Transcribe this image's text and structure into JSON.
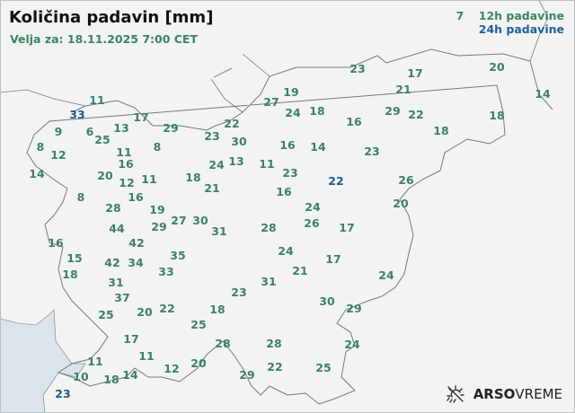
{
  "header": {
    "title": "Količina padavin [mm]",
    "valid_for": "Velja za: 18.11.2025 7:00 CET"
  },
  "legend": {
    "label_12h": "12h padavine",
    "label_24h": "24h padavine",
    "color_12h": "#3c8260",
    "color_24h": "#1f5a8c"
  },
  "branding": {
    "brand_bold": "ARSO",
    "brand_light": "VREME",
    "icon": "sun-rain-icon"
  },
  "map": {
    "colors": {
      "land": "#f3f3f3",
      "sea": "#dde3ea",
      "border": "#6e7a88"
    },
    "stations": [
      {
        "v": "7",
        "t": "12h"
      },
      {
        "v": "11",
        "t": "12h"
      },
      {
        "v": "33",
        "t": "24h"
      },
      {
        "v": "17",
        "t": "12h"
      },
      {
        "v": "29",
        "t": "12h"
      },
      {
        "v": "6",
        "t": "12h"
      },
      {
        "v": "9",
        "t": "12h"
      },
      {
        "v": "13",
        "t": "12h"
      },
      {
        "v": "8",
        "t": "12h"
      },
      {
        "v": "25",
        "t": "12h"
      },
      {
        "v": "11",
        "t": "12h"
      },
      {
        "v": "8",
        "t": "12h"
      },
      {
        "v": "12",
        "t": "12h"
      },
      {
        "v": "16",
        "t": "12h"
      },
      {
        "v": "14",
        "t": "12h"
      },
      {
        "v": "20",
        "t": "12h"
      },
      {
        "v": "12",
        "t": "12h"
      },
      {
        "v": "11",
        "t": "12h"
      },
      {
        "v": "16",
        "t": "12h"
      },
      {
        "v": "19",
        "t": "12h"
      },
      {
        "v": "8",
        "t": "12h"
      },
      {
        "v": "28",
        "t": "12h"
      },
      {
        "v": "18",
        "t": "12h"
      },
      {
        "v": "21",
        "t": "12h"
      },
      {
        "v": "24",
        "t": "12h"
      },
      {
        "v": "13",
        "t": "12h"
      },
      {
        "v": "23",
        "t": "12h"
      },
      {
        "v": "22",
        "t": "12h"
      },
      {
        "v": "30",
        "t": "12h"
      },
      {
        "v": "11",
        "t": "12h"
      },
      {
        "v": "29",
        "t": "12h"
      },
      {
        "v": "27",
        "t": "12h"
      },
      {
        "v": "30",
        "t": "12h"
      },
      {
        "v": "31",
        "t": "12h"
      },
      {
        "v": "28",
        "t": "12h"
      },
      {
        "v": "44",
        "t": "12h"
      },
      {
        "v": "16",
        "t": "12h"
      },
      {
        "v": "42",
        "t": "12h"
      },
      {
        "v": "15",
        "t": "12h"
      },
      {
        "v": "42",
        "t": "12h"
      },
      {
        "v": "34",
        "t": "12h"
      },
      {
        "v": "35",
        "t": "12h"
      },
      {
        "v": "33",
        "t": "12h"
      },
      {
        "v": "18",
        "t": "12h"
      },
      {
        "v": "31",
        "t": "12h"
      },
      {
        "v": "24",
        "t": "12h"
      },
      {
        "v": "37",
        "t": "12h"
      },
      {
        "v": "20",
        "t": "12h"
      },
      {
        "v": "22",
        "t": "12h"
      },
      {
        "v": "25",
        "t": "12h"
      },
      {
        "v": "23",
        "t": "12h"
      },
      {
        "v": "31",
        "t": "12h"
      },
      {
        "v": "18",
        "t": "12h"
      },
      {
        "v": "25",
        "t": "12h"
      },
      {
        "v": "17",
        "t": "12h"
      },
      {
        "v": "11",
        "t": "12h"
      },
      {
        "v": "28",
        "t": "12h"
      },
      {
        "v": "28",
        "t": "12h"
      },
      {
        "v": "11",
        "t": "12h"
      },
      {
        "v": "10",
        "t": "12h"
      },
      {
        "v": "18",
        "t": "12h"
      },
      {
        "v": "14",
        "t": "12h"
      },
      {
        "v": "12",
        "t": "12h"
      },
      {
        "v": "20",
        "t": "12h"
      },
      {
        "v": "22",
        "t": "12h"
      },
      {
        "v": "29",
        "t": "12h"
      },
      {
        "v": "23",
        "t": "24h"
      },
      {
        "v": "23",
        "t": "12h"
      },
      {
        "v": "17",
        "t": "12h"
      },
      {
        "v": "20",
        "t": "12h"
      },
      {
        "v": "21",
        "t": "12h"
      },
      {
        "v": "14",
        "t": "12h"
      },
      {
        "v": "27",
        "t": "12h"
      },
      {
        "v": "19",
        "t": "12h"
      },
      {
        "v": "24",
        "t": "12h"
      },
      {
        "v": "18",
        "t": "12h"
      },
      {
        "v": "16",
        "t": "12h"
      },
      {
        "v": "29",
        "t": "12h"
      },
      {
        "v": "22",
        "t": "12h"
      },
      {
        "v": "18",
        "t": "12h"
      },
      {
        "v": "18",
        "t": "12h"
      },
      {
        "v": "16",
        "t": "12h"
      },
      {
        "v": "14",
        "t": "12h"
      },
      {
        "v": "23",
        "t": "12h"
      },
      {
        "v": "23",
        "t": "12h"
      },
      {
        "v": "22",
        "t": "24h"
      },
      {
        "v": "26",
        "t": "12h"
      },
      {
        "v": "16",
        "t": "12h"
      },
      {
        "v": "24",
        "t": "12h"
      },
      {
        "v": "20",
        "t": "12h"
      },
      {
        "v": "26",
        "t": "12h"
      },
      {
        "v": "17",
        "t": "12h"
      },
      {
        "v": "24",
        "t": "12h"
      },
      {
        "v": "17",
        "t": "12h"
      },
      {
        "v": "21",
        "t": "12h"
      },
      {
        "v": "30",
        "t": "12h"
      },
      {
        "v": "29",
        "t": "12h"
      },
      {
        "v": "24",
        "t": "12h"
      },
      {
        "v": "25",
        "t": "12h"
      }
    ]
  }
}
